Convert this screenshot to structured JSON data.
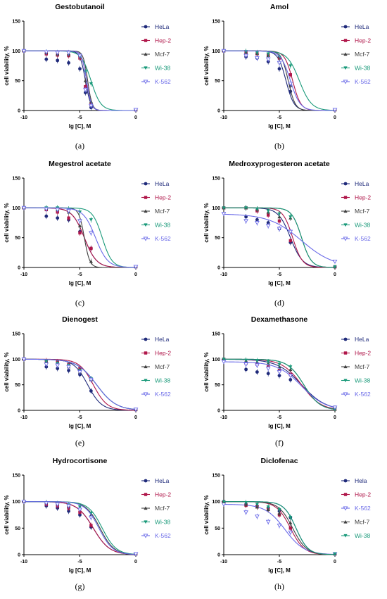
{
  "series_colors": {
    "HeLa": "#1f2a7a",
    "Hela": "#1f2a7a",
    "Hep-2": "#b0174a",
    "Mcf-7": "#404040",
    "Wi-38": "#1a9a7a",
    "K-562": "#6a6ae8"
  },
  "series_markers": {
    "HeLa": "circle",
    "Hela": "circle",
    "Hep-2": "square",
    "Mcf-7": "triangle-up",
    "Wi-38": "triangle-down",
    "K-562": "triangle-down-open"
  },
  "chart_data": [
    {
      "type": "line",
      "title": "Gestobutanoil",
      "caption": "(a)",
      "xlabel": "lg [C], M",
      "ylabel": "cell viability, %",
      "xlim": [
        -10,
        0
      ],
      "ylim": [
        0,
        150
      ],
      "xticks": [
        "-10",
        "-5",
        "0"
      ],
      "yticks": [
        "0",
        "50",
        "100",
        "150"
      ],
      "x": [
        -10,
        -8,
        -7,
        -6,
        -5,
        -4.5,
        -4
      ],
      "series": [
        {
          "name": "HeLa",
          "values": [
            100,
            86,
            84,
            80,
            70,
            30,
            5
          ],
          "ic50": -4.5,
          "hill": 1.8
        },
        {
          "name": "Hep-2",
          "values": [
            100,
            95,
            93,
            92,
            88,
            40,
            10
          ],
          "ic50": -4.4,
          "hill": 2.0
        },
        {
          "name": "Mcf-7",
          "values": [
            100,
            97,
            95,
            95,
            93,
            50,
            15
          ],
          "ic50": -4.3,
          "hill": 2.2
        },
        {
          "name": "Wi-38",
          "values": [
            100,
            98,
            97,
            96,
            90,
            65,
            45
          ],
          "ic50": -4.0,
          "hill": 1.0
        },
        {
          "name": "K-562",
          "values": [
            100,
            98,
            97,
            97,
            92,
            35,
            8
          ],
          "ic50": -4.4,
          "hill": 2.0
        }
      ]
    },
    {
      "type": "line",
      "title": "Amol",
      "caption": "(b)",
      "xlabel": "lg [C], M",
      "ylabel": "cell viability, %",
      "xlim": [
        -10,
        0
      ],
      "ylim": [
        0,
        150
      ],
      "xticks": [
        "-10",
        "-5",
        "0"
      ],
      "yticks": [
        "0",
        "50",
        "100",
        "150"
      ],
      "x": [
        -10,
        -8,
        -7,
        -6,
        -5,
        -4
      ],
      "series": [
        {
          "name": "HeLa",
          "values": [
            100,
            90,
            88,
            82,
            70,
            32
          ],
          "ic50": -4.4,
          "hill": 1.2
        },
        {
          "name": "Hep-2",
          "values": [
            100,
            97,
            95,
            93,
            88,
            60
          ],
          "ic50": -3.8,
          "hill": 1.2
        },
        {
          "name": "Mcf-7",
          "values": [
            100,
            98,
            96,
            92,
            82,
            42
          ],
          "ic50": -4.2,
          "hill": 1.4
        },
        {
          "name": "Wi-38",
          "values": [
            100,
            99,
            97,
            95,
            90,
            75
          ],
          "ic50": -3.2,
          "hill": 0.8
        },
        {
          "name": "K-562",
          "values": [
            100,
            92,
            88,
            86,
            80,
            45
          ],
          "ic50": -4.0,
          "hill": 1.0
        }
      ]
    },
    {
      "type": "line",
      "title": "Megestrol acetate",
      "caption": "(c)",
      "xlabel": "lg [C], M",
      "ylabel": "cell viability, %",
      "xlim": [
        -10,
        0
      ],
      "ylim": [
        0,
        150
      ],
      "xticks": [
        "-10",
        "-5",
        "0"
      ],
      "yticks": [
        "0",
        "50",
        "100",
        "150"
      ],
      "x": [
        -10,
        -8,
        -7,
        -6,
        -5,
        -4
      ],
      "series": [
        {
          "name": "HeLa",
          "values": [
            100,
            86,
            83,
            80,
            60,
            32
          ],
          "ic50": -4.6,
          "hill": 0.8
        },
        {
          "name": "Hep-2",
          "values": [
            100,
            97,
            93,
            83,
            58,
            32
          ],
          "ic50": -4.6,
          "hill": 0.8
        },
        {
          "name": "Mcf-7",
          "values": [
            100,
            99,
            97,
            93,
            70,
            10
          ],
          "ic50": -4.6,
          "hill": 1.8
        },
        {
          "name": "Wi-38",
          "values": [
            100,
            100,
            100,
            98,
            93,
            80
          ],
          "ic50": -3.0,
          "hill": 1.0
        },
        {
          "name": "K-562",
          "values": [
            100,
            98,
            97,
            95,
            78,
            58
          ],
          "ic50": -3.6,
          "hill": 0.8
        }
      ]
    },
    {
      "type": "line",
      "title": "Medroxyprogesteron acetate",
      "caption": "(d)",
      "xlabel": "lg [C], M",
      "ylabel": "cell viability, %",
      "xlim": [
        -10,
        0
      ],
      "ylim": [
        0,
        150
      ],
      "xticks": [
        "-10",
        "-5",
        "0"
      ],
      "yticks": [
        "0",
        "50",
        "100",
        "150"
      ],
      "x": [
        -10,
        -8,
        -7,
        -6,
        -5,
        -4
      ],
      "series": [
        {
          "name": "HeLa",
          "values": [
            100,
            85,
            80,
            75,
            65,
            42
          ],
          "ic50": -4.0,
          "hill": 0.8
        },
        {
          "name": "Hep-2",
          "values": [
            100,
            100,
            95,
            88,
            78,
            45
          ],
          "ic50": -3.8,
          "hill": 1.0
        },
        {
          "name": "Mcf-7",
          "values": [
            100,
            100,
            98,
            93,
            85,
            83
          ],
          "ic50": -3.0,
          "hill": 1.0
        },
        {
          "name": "Wi-38",
          "values": [
            100,
            100,
            98,
            95,
            90,
            85
          ],
          "ic50": -3.0,
          "hill": 1.0
        },
        {
          "name": "K-562",
          "values": [
            90,
            78,
            75,
            70,
            65,
            60
          ],
          "ic50": -3.0,
          "hill": 0.3
        }
      ]
    },
    {
      "type": "line",
      "title": "Dienogest",
      "caption": "(e)",
      "xlabel": "lg [C], M",
      "ylabel": "cell viability, %",
      "xlim": [
        -10,
        0
      ],
      "ylim": [
        0,
        150
      ],
      "xticks": [
        "-10",
        "-5",
        "0"
      ],
      "yticks": [
        "0",
        "50",
        "100",
        "150"
      ],
      "x": [
        -10,
        -8,
        -7,
        -6,
        -5,
        -4
      ],
      "series": [
        {
          "name": "HeLa",
          "values": [
            100,
            85,
            82,
            78,
            70,
            38
          ],
          "ic50": -4.3,
          "hill": 0.7
        },
        {
          "name": "Hep-2",
          "values": [
            100,
            97,
            95,
            90,
            82,
            60
          ],
          "ic50": -3.8,
          "hill": 0.7
        },
        {
          "name": "Mcf-7",
          "values": [
            100,
            95,
            92,
            85,
            75,
            60
          ],
          "ic50": -3.5,
          "hill": 0.5
        },
        {
          "name": "Wi-38",
          "values": [
            100,
            95,
            92,
            88,
            78,
            62
          ],
          "ic50": -3.5,
          "hill": 0.5
        },
        {
          "name": "K-562",
          "values": [
            100,
            90,
            88,
            85,
            75,
            60
          ],
          "ic50": -3.5,
          "hill": 0.5
        }
      ]
    },
    {
      "type": "line",
      "title": "Dexamethasone",
      "caption": "(f)",
      "xlabel": "lg [C], M",
      "ylabel": "cell viability, %",
      "xlim": [
        -10,
        0
      ],
      "ylim": [
        0,
        150
      ],
      "xticks": [
        "-10",
        "-5",
        "0"
      ],
      "yticks": [
        "0",
        "50",
        "100",
        "150"
      ],
      "x": [
        -10,
        -8,
        -7,
        -6,
        -5,
        -4
      ],
      "series": [
        {
          "name": "HeLa",
          "values": [
            100,
            80,
            75,
            72,
            68,
            60
          ],
          "ic50": -3.0,
          "hill": 0.4
        },
        {
          "name": "Hep-2",
          "values": [
            100,
            92,
            90,
            85,
            78,
            70
          ],
          "ic50": -3.0,
          "hill": 0.5
        },
        {
          "name": "Mcf-7",
          "values": [
            100,
            97,
            95,
            92,
            85,
            80
          ],
          "ic50": -2.8,
          "hill": 0.6
        },
        {
          "name": "Wi-38",
          "values": [
            100,
            98,
            97,
            95,
            90,
            85
          ],
          "ic50": -2.8,
          "hill": 0.6
        },
        {
          "name": "K-562",
          "values": [
            95,
            90,
            88,
            82,
            75,
            68
          ],
          "ic50": -3.0,
          "hill": 0.4
        }
      ]
    },
    {
      "type": "line",
      "title": "Hydrocortisone",
      "caption": "(g)",
      "xlabel": "lg [C], M",
      "ylabel": "cell viability, %",
      "xlim": [
        -10,
        0
      ],
      "ylim": [
        0,
        150
      ],
      "xticks": [
        "-10",
        "-5",
        "0"
      ],
      "yticks": [
        "0",
        "50",
        "100",
        "150"
      ],
      "x": [
        -10,
        -8,
        -7,
        -6,
        -5,
        -4
      ],
      "series": [
        {
          "name": "HeLa",
          "values": [
            100,
            92,
            88,
            82,
            75,
            52
          ],
          "ic50": -3.8,
          "hill": 0.6
        },
        {
          "name": "Hep-2",
          "values": [
            100,
            95,
            92,
            88,
            80,
            55
          ],
          "ic50": -3.8,
          "hill": 0.6
        },
        {
          "name": "Mcf-7",
          "values": [
            100,
            98,
            96,
            92,
            88,
            75
          ],
          "ic50": -3.2,
          "hill": 0.7
        },
        {
          "name": "Wi-38",
          "values": [
            100,
            98,
            96,
            94,
            90,
            78
          ],
          "ic50": -3.0,
          "hill": 0.7
        },
        {
          "name": "K-562",
          "values": [
            100,
            97,
            95,
            92,
            85,
            70
          ],
          "ic50": -3.3,
          "hill": 0.7
        }
      ]
    },
    {
      "type": "line",
      "title": "Diclofenac",
      "caption": "(h)",
      "xlabel": "lg [C], M",
      "ylabel": "cell viability, %",
      "xlim": [
        -10,
        0
      ],
      "ylim": [
        0,
        150
      ],
      "xticks": [
        "-10",
        "-5",
        "0"
      ],
      "yticks": [
        "0",
        "50",
        "100",
        "150"
      ],
      "x": [
        -10,
        -8,
        -7,
        -6,
        -5,
        -4
      ],
      "series": [
        {
          "name": "Hela",
          "values": [
            100,
            95,
            92,
            88,
            82,
            70
          ],
          "ic50": -3.5,
          "hill": 0.8
        },
        {
          "name": "Hep-2",
          "values": [
            100,
            93,
            90,
            85,
            75,
            50
          ],
          "ic50": -4.0,
          "hill": 0.7
        },
        {
          "name": "K-562",
          "values": [
            95,
            80,
            72,
            62,
            55,
            42
          ],
          "ic50": -4.5,
          "hill": 0.5
        },
        {
          "name": "Mcf-7",
          "values": [
            100,
            95,
            90,
            85,
            78,
            60
          ],
          "ic50": -3.8,
          "hill": 0.7
        },
        {
          "name": "Wi-38",
          "values": [
            100,
            98,
            95,
            90,
            85,
            70
          ],
          "ic50": -3.5,
          "hill": 0.8
        }
      ]
    }
  ]
}
